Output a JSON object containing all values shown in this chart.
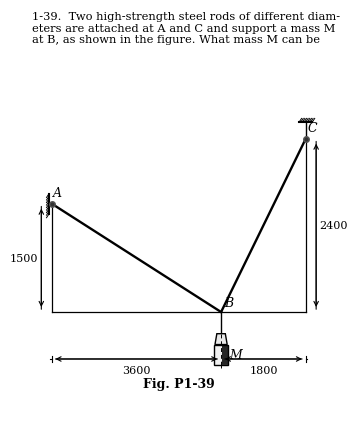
{
  "title_text": "1-39.  Two high-strength steel rods of different diam-\neters are attached at A and C and support a mass M\nat B, as shown in the figure. What mass M can be",
  "fig_label": "Fig. P1-39",
  "background_color": "#ffffff",
  "text_color": "#000000",
  "line_color": "#000000",
  "A": [
    0.0,
    1500.0
  ],
  "B": [
    3600.0,
    0.0
  ],
  "C": [
    5400.0,
    2400.0
  ],
  "dim_3600": "3600",
  "dim_1800": "1800",
  "dim_1500": "1500",
  "dim_2400": "2400",
  "label_A": "A",
  "label_B": "B",
  "label_C": "C",
  "label_M": "M"
}
